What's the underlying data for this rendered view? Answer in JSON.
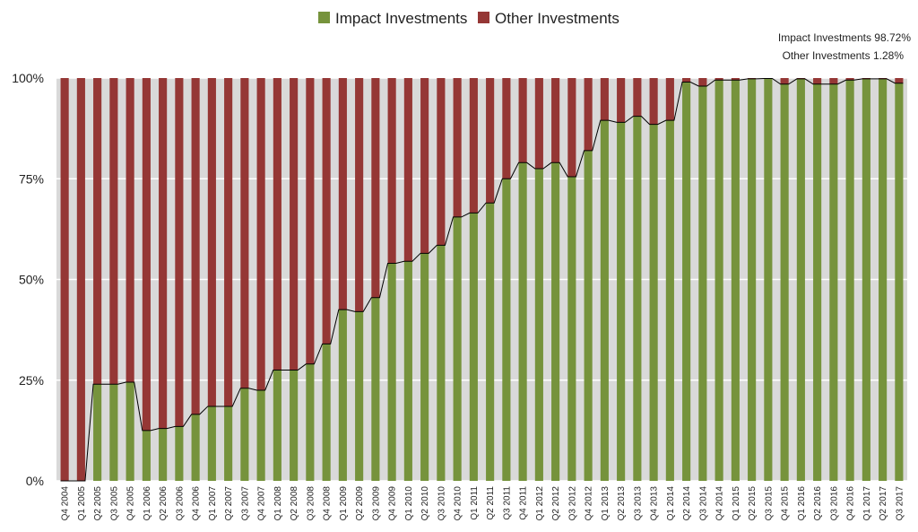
{
  "chart_data": {
    "type": "bar",
    "stacked": true,
    "normalized": true,
    "title": "",
    "xlabel": "",
    "ylabel": "",
    "ylim": [
      0,
      100
    ],
    "ytick_labels": [
      "0%",
      "25%",
      "50%",
      "75%",
      "100%"
    ],
    "grid": true,
    "legend_placement": "top-center",
    "categories": [
      "Q4 2004",
      "Q1 2005",
      "Q2 2005",
      "Q3 2005",
      "Q4 2005",
      "Q1 2006",
      "Q2 2006",
      "Q3 2006",
      "Q4 2006",
      "Q1 2007",
      "Q2 2007",
      "Q3 2007",
      "Q4 2007",
      "Q1 2008",
      "Q2 2008",
      "Q3 2008",
      "Q4 2008",
      "Q1 2009",
      "Q2 2009",
      "Q3 2009",
      "Q4 2009",
      "Q1 2010",
      "Q2 2010",
      "Q3 2010",
      "Q4 2010",
      "Q1 2011",
      "Q2 2011",
      "Q3 2011",
      "Q4 2011",
      "Q1 2012",
      "Q2 2012",
      "Q3 2012",
      "Q4 2012",
      "Q1 2013",
      "Q2 2013",
      "Q3 2013",
      "Q4 2013",
      "Q1 2014",
      "Q2 2014",
      "Q3 2014",
      "Q4 2014",
      "Q1 2015",
      "Q2 2015",
      "Q3 2015",
      "Q4 2015",
      "Q1 2016",
      "Q2 2016",
      "Q3 2016",
      "Q4 2016",
      "Q1 2017",
      "Q2 2017",
      "Q3 2017"
    ],
    "series": [
      {
        "name": "Impact Investments",
        "color": "#76933c",
        "values": [
          0,
          0,
          24,
          24,
          24.5,
          12.5,
          13,
          13.5,
          16.5,
          18.5,
          18.5,
          23,
          22.5,
          27.5,
          27.5,
          29,
          34,
          42.5,
          42,
          45.5,
          54,
          54.5,
          56.5,
          58.5,
          65.5,
          66.5,
          69,
          75,
          79,
          77.5,
          79,
          75.5,
          82,
          89.5,
          89,
          90.5,
          88.5,
          89.5,
          99,
          98,
          99.5,
          99.5,
          99.8,
          99.9,
          98.5,
          99.8,
          98.5,
          98.5,
          99.5,
          99.8,
          99.8,
          98.72
        ]
      },
      {
        "name": "Other Investments",
        "color": "#953735",
        "values": [
          100,
          100,
          76,
          76,
          75.5,
          87.5,
          87,
          86.5,
          83.5,
          81.5,
          81.5,
          77,
          77.5,
          72.5,
          72.5,
          71,
          66,
          57.5,
          58,
          54.5,
          46,
          45.5,
          43.5,
          41.5,
          34.5,
          33.5,
          31,
          25,
          21,
          22.5,
          21,
          24.5,
          18,
          10.5,
          11,
          9.5,
          11.5,
          10.5,
          1,
          2,
          0.5,
          0.5,
          0.2,
          0.1,
          1.5,
          0.2,
          1.5,
          1.5,
          0.5,
          0.2,
          0.2,
          1.28
        ]
      }
    ],
    "annotations": [
      "Impact Investments 98.72%",
      "Other Investments 1.28%"
    ]
  },
  "colors": {
    "plot_background": "#d9d9d9",
    "gridline": "#ffffff",
    "line": "#000000"
  }
}
